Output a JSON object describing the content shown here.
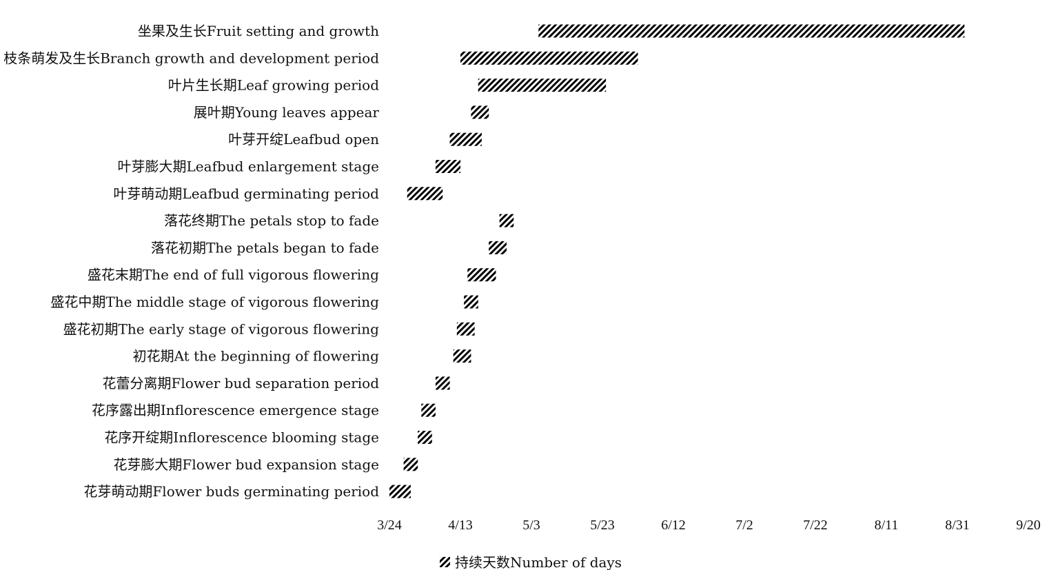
{
  "chart_data": {
    "type": "bar",
    "orientation": "horizontal",
    "subtype": "gantt",
    "categories": [
      "坐果及生长Fruit setting and growth",
      "枝条萌发及生长Branch growth and development period",
      "叶片生长期Leaf growing period",
      "展叶期Young leaves appear",
      "叶芽开绽Leafbud open",
      "叶芽膨大期Leafbud enlargement stage",
      "叶芽萌动期Leafbud germinating period",
      "落花终期The petals stop to fade",
      "落花初期The petals began to fade",
      "盛花末期The end of full vigorous flowering",
      "盛花中期The middle stage of vigorous flowering",
      "盛花初期The early stage of vigorous flowering",
      "初花期At the beginning of flowering",
      "花蕾分离期Flower bud separation period",
      "花序露出期Inflorescence emergence stage",
      "花序开绽期Inflorescence blooming stage",
      "花芽膨大期Flower bud expansion stage",
      "花芽萌动期Flower buds germinating period"
    ],
    "series": [
      {
        "name": "持续天数Number of days",
        "bars": [
          {
            "start": "5/5",
            "days": 120
          },
          {
            "start": "4/13",
            "days": 50
          },
          {
            "start": "4/18",
            "days": 36
          },
          {
            "start": "4/16",
            "days": 5
          },
          {
            "start": "4/10",
            "days": 9
          },
          {
            "start": "4/6",
            "days": 7
          },
          {
            "start": "3/29",
            "days": 10
          },
          {
            "start": "4/24",
            "days": 4
          },
          {
            "start": "4/21",
            "days": 5
          },
          {
            "start": "4/15",
            "days": 8
          },
          {
            "start": "4/14",
            "days": 4
          },
          {
            "start": "4/12",
            "days": 5
          },
          {
            "start": "4/11",
            "days": 5
          },
          {
            "start": "4/6",
            "days": 4
          },
          {
            "start": "4/2",
            "days": 4
          },
          {
            "start": "4/1",
            "days": 4
          },
          {
            "start": "3/28",
            "days": 4
          },
          {
            "start": "3/24",
            "days": 6
          }
        ]
      }
    ],
    "x_ticks": [
      "3/24",
      "4/13",
      "5/3",
      "5/23",
      "6/12",
      "7/2",
      "7/22",
      "8/11",
      "8/31",
      "9/20"
    ],
    "xlim": [
      "3/24",
      "9/20"
    ],
    "grid": false,
    "legend": "bottom-center",
    "colors": {
      "bar_pattern": "#000000",
      "bar_fill": "#ffffff"
    }
  }
}
